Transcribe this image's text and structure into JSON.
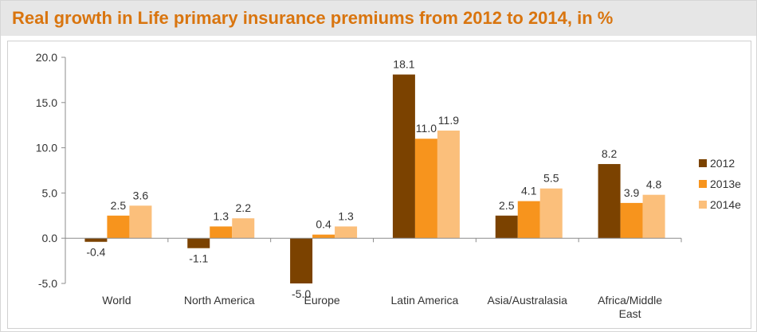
{
  "title": "Real growth in Life primary insurance premiums from 2012 to 2014, in %",
  "colors": {
    "title": "#d9750f",
    "s2012": "#7b4200",
    "s2013e": "#f7941d",
    "s2014e": "#fbbf7b"
  },
  "chart_data": {
    "type": "bar",
    "title": "Real growth in Life primary insurance premiums from 2012 to 2014, in %",
    "xlabel": "",
    "ylabel": "",
    "categories": [
      "World",
      "North America",
      "Europe",
      "Latin America",
      "Asia/Australasia",
      "Africa/Middle East"
    ],
    "category_lines": [
      [
        "World"
      ],
      [
        "North America"
      ],
      [
        "Europe"
      ],
      [
        "Latin America"
      ],
      [
        "Asia/Australasia"
      ],
      [
        "Africa/Middle",
        "East"
      ]
    ],
    "series": [
      {
        "name": "2012",
        "values": [
          -0.4,
          -1.1,
          -5.0,
          18.1,
          2.5,
          8.2
        ]
      },
      {
        "name": "2013e",
        "values": [
          2.5,
          1.3,
          0.4,
          11.0,
          4.1,
          3.9
        ]
      },
      {
        "name": "2014e",
        "values": [
          3.6,
          2.2,
          1.3,
          11.9,
          5.5,
          4.8
        ]
      }
    ],
    "data_labels": [
      [
        "-0.4",
        "-1.1",
        "-5.0",
        "18.1",
        "2.5",
        "8.2"
      ],
      [
        "2.5",
        "1.3",
        "0.4",
        "11.0",
        "4.1",
        "3.9"
      ],
      [
        "3.6",
        "2.2",
        "1.3",
        "11.9",
        "5.5",
        "4.8"
      ]
    ],
    "y_ticks": [
      "20.0",
      "15.0",
      "10.0",
      "5.0",
      "0.0",
      "-5.0"
    ],
    "ylim": [
      -5,
      20
    ],
    "grid": false,
    "legend_position": "right"
  }
}
